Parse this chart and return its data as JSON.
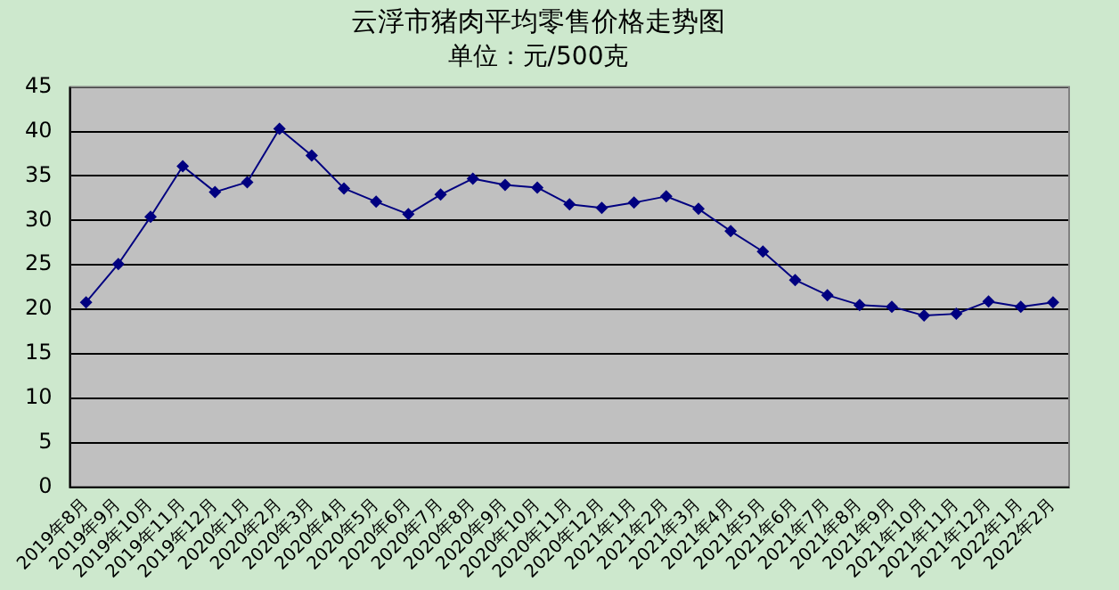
{
  "chart_data": {
    "type": "line",
    "title": "云浮市猪肉平均零售价格走势图",
    "subtitle": "单位：元/500克",
    "categories": [
      "2019年8月",
      "2019年9月",
      "2019年10月",
      "2019年11月",
      "2019年12月",
      "2020年1月",
      "2020年2月",
      "2020年3月",
      "2020年4月",
      "2020年5月",
      "2020年6月",
      "2020年7月",
      "2020年8月",
      "2020年9月",
      "2020年10月",
      "2020年11月",
      "2020年12月",
      "2021年1月",
      "2021年2月",
      "2021年3月",
      "2021年4月",
      "2021年5月",
      "2021年6月",
      "2021年7月",
      "2021年8月",
      "2021年9月",
      "2021年10月",
      "2021年11月",
      "2021年12月",
      "2022年1月",
      "2022年2月"
    ],
    "series": [
      {
        "color": "#000080",
        "values": [
          20.8,
          25.1,
          30.4,
          36.1,
          33.2,
          34.3,
          40.3,
          37.3,
          33.6,
          32.1,
          30.7,
          32.9,
          34.7,
          34.0,
          33.7,
          31.8,
          31.4,
          32.0,
          32.7,
          31.3,
          28.8,
          26.5,
          23.3,
          21.6,
          20.5,
          20.3,
          19.3,
          19.5,
          20.9,
          20.3,
          20.8
        ]
      }
    ],
    "ylim": [
      0,
      45
    ],
    "yticks": [
      0,
      5,
      10,
      15,
      20,
      25,
      30,
      35,
      40,
      45
    ],
    "grid": "y",
    "legend": false,
    "marker": "diamond",
    "line_style": "solid"
  }
}
